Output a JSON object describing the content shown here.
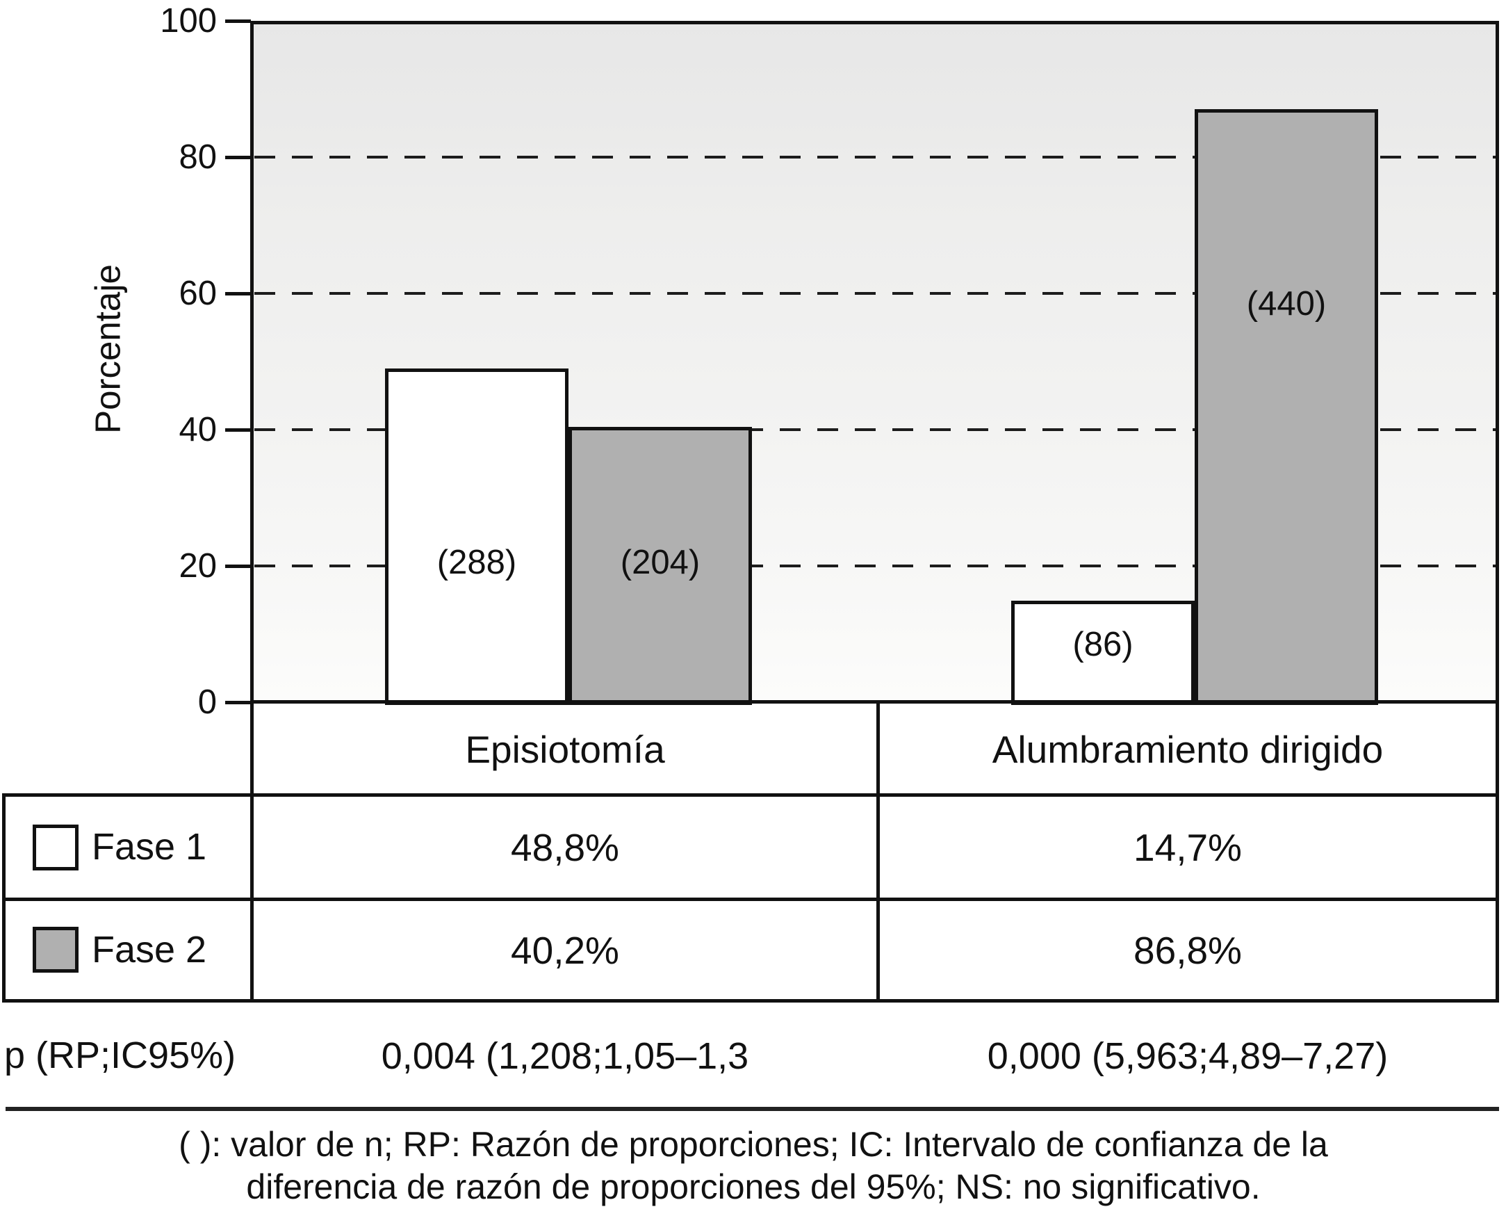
{
  "chart_data": {
    "type": "bar",
    "title": "",
    "xlabel": "",
    "ylabel": "Porcentaje",
    "ylim": [
      0,
      100
    ],
    "yticks": [
      100,
      80,
      60,
      40,
      20,
      0
    ],
    "gridlines_dashed_at": [
      80,
      60,
      40,
      20
    ],
    "grid": "horizontal dashed",
    "legend_position": "table rows below chart",
    "categories": [
      "Episiotomía",
      "Alumbramiento dirigido"
    ],
    "series": [
      {
        "name": "Fase 1",
        "color": "#ffffff",
        "values": [
          48.8,
          14.7
        ],
        "n": [
          288,
          86
        ],
        "n_labels": [
          "(288)",
          "(86)"
        ],
        "n_label_y": [
          20.5,
          8.5
        ]
      },
      {
        "name": "Fase 2",
        "color": "#b0b0b0",
        "values": [
          40.2,
          86.8
        ],
        "n": [
          204,
          440
        ],
        "n_labels": [
          "(204)",
          "(440)"
        ],
        "n_label_y": [
          20.5,
          58.5
        ]
      }
    ]
  },
  "table": {
    "rows": [
      {
        "label": "Fase 1",
        "swatch": "#ffffff",
        "values": [
          "48,8%",
          "14,7%"
        ]
      },
      {
        "label": "Fase 2",
        "swatch": "#b0b0b0",
        "values": [
          "40,2%",
          "86,8%"
        ]
      }
    ]
  },
  "stats": {
    "label": "p (RP;IC95%)",
    "values": [
      "0,004 (1,208;1,05–1,3",
      "0,000 (5,963;4,89–7,27)"
    ]
  },
  "footnote": {
    "line1": "( ): valor de n; RP: Razón de proporciones; IC: Intervalo de confianza de la",
    "line2": "diferencia de razón de proporciones del 95%; NS: no significativo."
  }
}
